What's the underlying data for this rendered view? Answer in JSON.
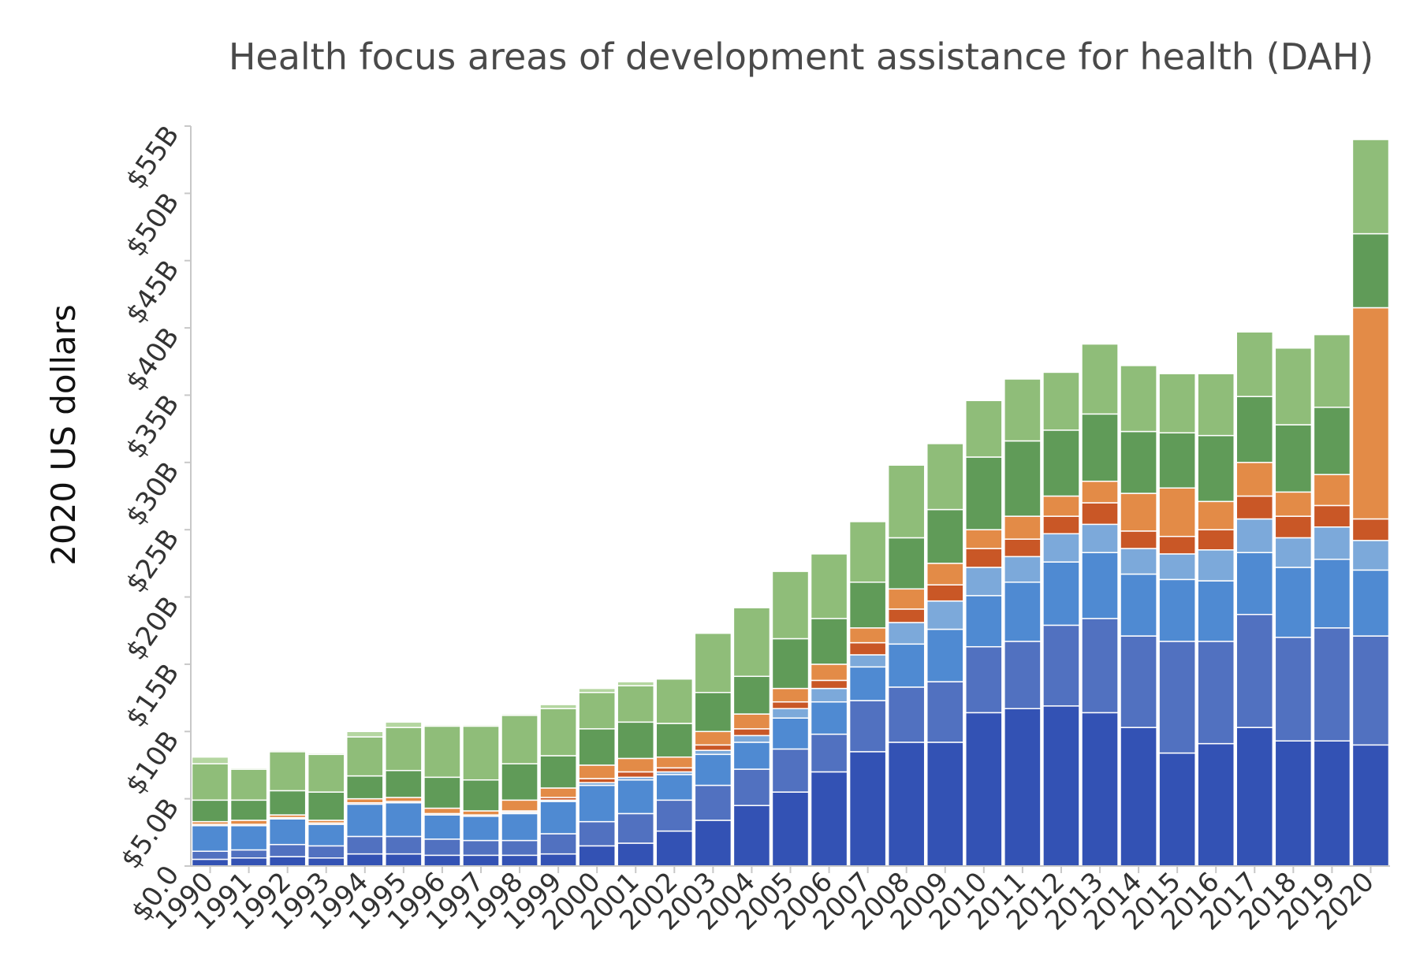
{
  "chart_data": {
    "type": "bar",
    "stacked": true,
    "title": "Health focus areas of development assistance for health (DAH)",
    "xlabel": "",
    "ylabel": "2020 US dollars",
    "ylim": [
      0,
      55
    ],
    "yunit": "billions of 2020 US dollars",
    "yticks": [
      0,
      5,
      10,
      15,
      20,
      25,
      30,
      35,
      40,
      45,
      50,
      55
    ],
    "ytick_labels": [
      "$0.0",
      "$5.0B",
      "$10B",
      "$15B",
      "$20B",
      "$25B",
      "$30B",
      "$35B",
      "$40B",
      "$45B",
      "$50B",
      "$55B"
    ],
    "grid": false,
    "legend": "none",
    "categories": [
      "1990",
      "1991",
      "1992",
      "1993",
      "1994",
      "1995",
      "1996",
      "1997",
      "1998",
      "1999",
      "2000",
      "2001",
      "2002",
      "2003",
      "2004",
      "2005",
      "2006",
      "2007",
      "2008",
      "2009",
      "2010",
      "2011",
      "2012",
      "2013",
      "2014",
      "2015",
      "2016",
      "2017",
      "2018",
      "2019",
      "2020"
    ],
    "series": [
      {
        "color": "#3352b4",
        "values": [
          0.5,
          0.6,
          0.7,
          0.6,
          0.9,
          0.9,
          0.8,
          0.8,
          0.8,
          0.9,
          1.5,
          1.7,
          2.6,
          3.4,
          4.5,
          5.5,
          7.0,
          8.5,
          9.2,
          9.2,
          11.4,
          11.7,
          11.9,
          11.4,
          10.3,
          8.4,
          9.1,
          10.3,
          9.3,
          9.3,
          9.0
        ]
      },
      {
        "color": "#5171c0",
        "values": [
          0.6,
          0.6,
          0.9,
          0.9,
          1.3,
          1.3,
          1.2,
          1.1,
          1.1,
          1.5,
          1.8,
          2.2,
          2.3,
          2.6,
          2.7,
          3.2,
          2.8,
          3.8,
          4.1,
          4.5,
          4.9,
          5.0,
          6.0,
          7.0,
          6.8,
          8.3,
          7.6,
          8.4,
          7.7,
          8.4,
          8.1
        ]
      },
      {
        "color": "#4f8ad2",
        "values": [
          1.9,
          1.8,
          1.9,
          1.6,
          2.4,
          2.5,
          1.8,
          1.8,
          2.0,
          2.4,
          2.7,
          2.5,
          1.9,
          2.3,
          2.0,
          2.3,
          2.4,
          2.5,
          3.2,
          3.9,
          3.8,
          4.4,
          4.7,
          4.9,
          4.6,
          4.6,
          4.5,
          4.6,
          5.2,
          5.1,
          4.9
        ]
      },
      {
        "color": "#7ca9da",
        "values": [
          0.0,
          0.0,
          0.0,
          0.0,
          0.0,
          0.0,
          0.0,
          0.0,
          0.1,
          0.1,
          0.2,
          0.2,
          0.2,
          0.3,
          0.5,
          0.7,
          1.0,
          0.9,
          1.6,
          2.1,
          2.1,
          1.9,
          2.1,
          2.1,
          1.9,
          1.9,
          2.3,
          2.5,
          2.2,
          2.4,
          2.2
        ]
      },
      {
        "color": "#c95726",
        "values": [
          0.1,
          0.1,
          0.1,
          0.1,
          0.1,
          0.1,
          0.1,
          0.1,
          0.1,
          0.2,
          0.3,
          0.4,
          0.3,
          0.4,
          0.5,
          0.5,
          0.6,
          0.9,
          1.0,
          1.2,
          1.4,
          1.3,
          1.3,
          1.6,
          1.3,
          1.3,
          1.5,
          1.7,
          1.6,
          1.6,
          1.6
        ]
      },
      {
        "color": "#e38b47",
        "values": [
          0.2,
          0.3,
          0.2,
          0.2,
          0.3,
          0.3,
          0.4,
          0.3,
          0.8,
          0.7,
          1.0,
          1.0,
          0.8,
          1.0,
          1.1,
          1.0,
          1.2,
          1.1,
          1.5,
          1.6,
          1.4,
          1.7,
          1.5,
          1.6,
          2.8,
          3.6,
          2.1,
          2.5,
          1.8,
          2.3,
          15.7
        ]
      },
      {
        "color": "#609b58",
        "values": [
          1.6,
          1.5,
          1.8,
          2.1,
          1.7,
          2.0,
          2.3,
          2.3,
          2.7,
          2.4,
          2.7,
          2.7,
          2.5,
          2.9,
          2.8,
          3.7,
          3.4,
          3.4,
          3.8,
          4.0,
          5.4,
          5.6,
          4.9,
          5.0,
          4.6,
          4.1,
          4.9,
          4.9,
          5.0,
          5.0,
          5.5
        ]
      },
      {
        "color": "#8fbd79",
        "values": [
          2.7,
          2.3,
          2.9,
          2.8,
          2.9,
          3.2,
          3.8,
          4.0,
          3.6,
          3.5,
          2.7,
          2.7,
          3.3,
          4.4,
          5.1,
          5.0,
          4.8,
          4.5,
          5.4,
          4.9,
          4.2,
          4.6,
          4.3,
          5.2,
          4.9,
          4.4,
          4.6,
          4.8,
          5.7,
          5.4,
          7.0
        ]
      },
      {
        "color": "#b4d6a0",
        "values": [
          0.5,
          0.1,
          0.1,
          0.1,
          0.4,
          0.4,
          0.1,
          0.1,
          0.1,
          0.3,
          0.3,
          0.3,
          0.0,
          0.0,
          0.0,
          0.0,
          0.0,
          0.0,
          0.0,
          0.0,
          0.0,
          0.0,
          0.0,
          0.0,
          0.0,
          0.0,
          0.0,
          0.0,
          0.0,
          0.0,
          0.0
        ]
      }
    ]
  }
}
